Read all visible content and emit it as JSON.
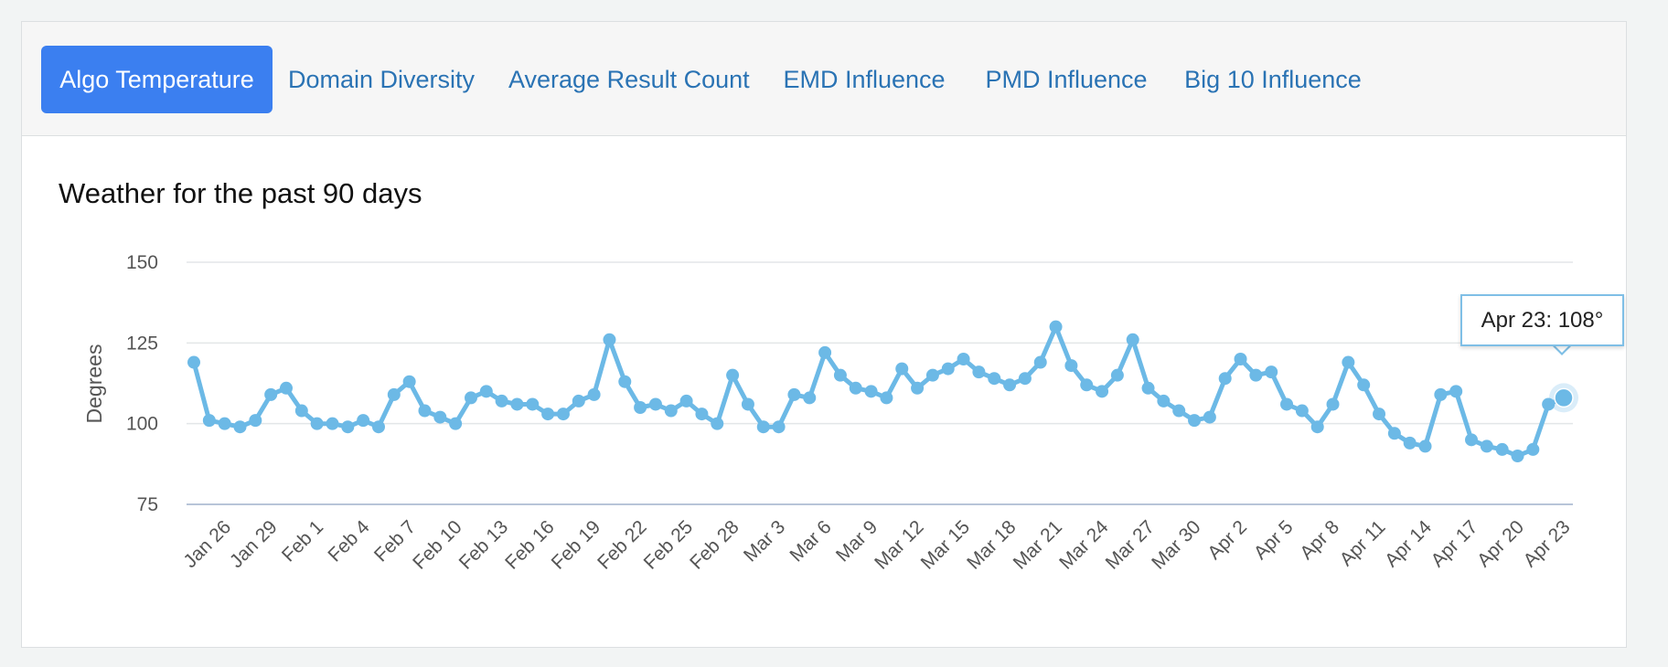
{
  "tabs": [
    {
      "label": "Algo Temperature",
      "active": true
    },
    {
      "label": "Domain Diversity",
      "active": false
    },
    {
      "label": "Average Result Count",
      "active": false
    },
    {
      "label": "EMD Influence",
      "active": false
    },
    {
      "label": "PMD Influence",
      "active": false
    },
    {
      "label": "Big 10 Influence",
      "active": false
    }
  ],
  "colors": {
    "accent": "#3b7ff0",
    "tab_text": "#2a73b4",
    "line": "#6cb9e6"
  },
  "chart_data": {
    "type": "line",
    "title": "Weather for the past 90 days",
    "xlabel": "",
    "ylabel": "Degrees",
    "ylim": [
      75,
      150
    ],
    "yticks": [
      75,
      100,
      125,
      150
    ],
    "grid": true,
    "x_tick_labels": [
      "Jan 26",
      "Jan 29",
      "Feb 1",
      "Feb 4",
      "Feb 7",
      "Feb 10",
      "Feb 13",
      "Feb 16",
      "Feb 19",
      "Feb 22",
      "Feb 25",
      "Feb 28",
      "Mar 3",
      "Mar 6",
      "Mar 9",
      "Mar 12",
      "Mar 15",
      "Mar 18",
      "Mar 21",
      "Mar 24",
      "Mar 27",
      "Mar 30",
      "Apr 2",
      "Apr 5",
      "Apr 8",
      "Apr 11",
      "Apr 14",
      "Apr 17",
      "Apr 20",
      "Apr 23"
    ],
    "values": [
      119,
      101,
      100,
      99,
      101,
      109,
      111,
      104,
      100,
      100,
      99,
      101,
      99,
      109,
      113,
      104,
      102,
      100,
      108,
      110,
      107,
      106,
      106,
      103,
      103,
      107,
      109,
      126,
      113,
      105,
      106,
      104,
      107,
      103,
      100,
      115,
      106,
      99,
      99,
      109,
      108,
      122,
      115,
      111,
      110,
      108,
      117,
      111,
      115,
      117,
      120,
      116,
      114,
      112,
      114,
      119,
      130,
      118,
      112,
      110,
      115,
      126,
      111,
      107,
      104,
      101,
      102,
      114,
      120,
      115,
      116,
      106,
      104,
      99,
      106,
      119,
      112,
      103,
      97,
      94,
      93,
      109,
      110,
      95,
      93,
      92,
      90,
      92,
      106,
      108
    ],
    "tooltip": {
      "text": "Apr 23: 108°"
    }
  }
}
